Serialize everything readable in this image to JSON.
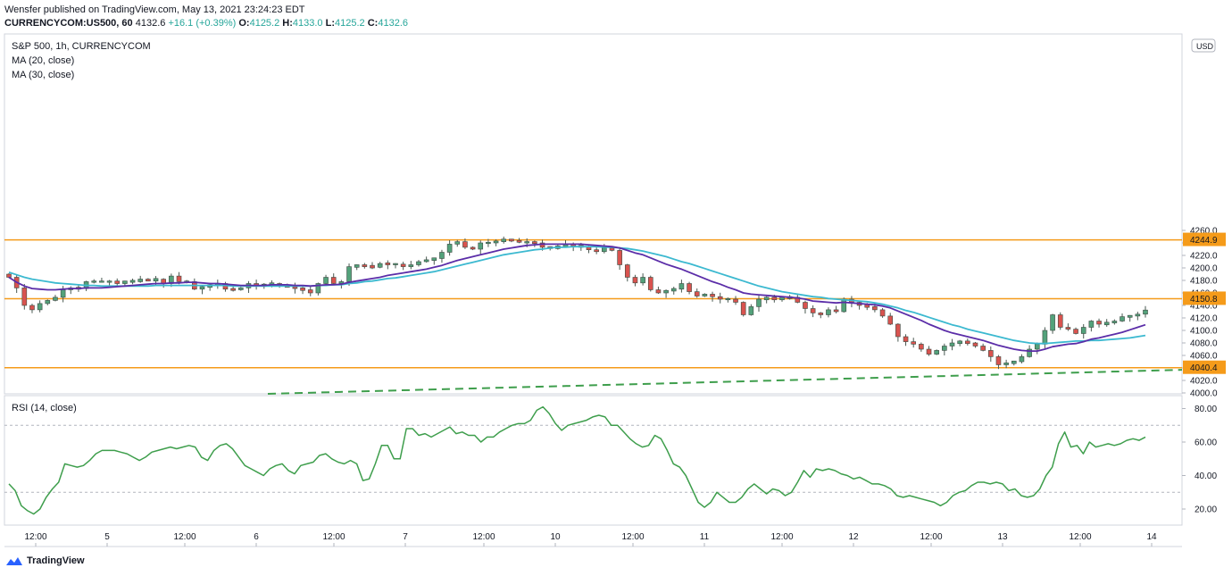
{
  "header": {
    "line1": "Wensfer published on TradingView.com, May 13, 2021 23:24:23 EDT",
    "symbol": "CURRENCYCOM:US500, 60",
    "last": "4132.6",
    "change": "+16.1 (+0.39%)",
    "o_label": "O:",
    "o": "4125.2",
    "h_label": "H:",
    "h": "4133.0",
    "l_label": "L:",
    "l": "4125.2",
    "c_label": "C:",
    "c": "4132.6"
  },
  "legend": {
    "main": "S&P 500, 1h, CURRENCYCOM",
    "ma20": "MA (20, close)",
    "ma30": "MA (30, close)",
    "rsi": "RSI (14, close)"
  },
  "currency": "USD",
  "brand": "TradingView",
  "colors": {
    "up": "#53a27b",
    "down": "#d9534f",
    "ma20": "#5b2da8",
    "ma30": "#3cb9d0",
    "hline": "#f59b1a",
    "trend": "#3e9e4c",
    "rsi": "#3e9e4c"
  },
  "chart_data": [
    {
      "type": "candlestick",
      "title": "S&P 500, 1h, CURRENCYCOM",
      "ylim": [
        4000,
        4270
      ],
      "y_ticks": [
        4000,
        4020,
        4040,
        4060,
        4080,
        4100,
        4120,
        4140,
        4160,
        4180,
        4200,
        4220,
        4240,
        4260
      ],
      "x_ticks": [
        "12:00",
        "5",
        "12:00",
        "6",
        "12:00",
        "7",
        "12:00",
        "10",
        "12:00",
        "11",
        "12:00",
        "12",
        "12:00",
        "13",
        "12:00",
        "14"
      ],
      "price_labels": [
        4244.9,
        4150.8,
        4040.4
      ],
      "horizontal_levels": [
        4244.9,
        4150.8,
        4040.4
      ],
      "trendline": {
        "from": 4000,
        "to": 4037,
        "style": "dashed"
      },
      "close": [
        4185,
        4168,
        4140,
        4133,
        4143,
        4148,
        4153,
        4165,
        4168,
        4167,
        4178,
        4178,
        4178,
        4178,
        4176,
        4178,
        4179,
        4181,
        4180,
        4182,
        4175,
        4187,
        4178,
        4178,
        4166,
        4170,
        4172,
        4175,
        4166,
        4165,
        4168,
        4175,
        4172,
        4173,
        4175,
        4171,
        4170,
        4167,
        4165,
        4160,
        4175,
        4185,
        4175,
        4178,
        4202,
        4204,
        4203,
        4201,
        4207,
        4206,
        4206,
        4202,
        4205,
        4210,
        4213,
        4215,
        4225,
        4238,
        4242,
        4233,
        4230,
        4240,
        4240,
        4243,
        4245,
        4244,
        4241,
        4241,
        4240,
        4233,
        4232,
        4234,
        4238,
        4235,
        4234,
        4229,
        4226,
        4232,
        4228,
        4205,
        4185,
        4176,
        4185,
        4165,
        4160,
        4164,
        4166,
        4175,
        4162,
        4155,
        4158,
        4154,
        4150,
        4150,
        4145,
        4125,
        4138,
        4150,
        4152,
        4150,
        4152,
        4153,
        4145,
        4135,
        4128,
        4125,
        4133,
        4130,
        4150,
        4145,
        4140,
        4138,
        4133,
        4123,
        4110,
        4090,
        4082,
        4078,
        4070,
        4062,
        4068,
        4075,
        4080,
        4082,
        4080,
        4075,
        4068,
        4058,
        4045,
        4048,
        4050,
        4058,
        4070,
        4078,
        4100,
        4125,
        4105,
        4102,
        4095,
        4105,
        4115,
        4110,
        4112,
        4115,
        4122,
        4123,
        4126,
        4132.6
      ],
      "series": [
        {
          "name": "MA (20, close)",
          "values": [
            4185,
            4177,
            4171,
            4167,
            4166,
            4165,
            4165,
            4166,
            4167,
            4167,
            4168,
            4168,
            4168,
            4169,
            4170,
            4171,
            4172,
            4173,
            4174,
            4175,
            4175,
            4176,
            4176,
            4177,
            4177,
            4176,
            4175,
            4175,
            4174,
            4173,
            4172,
            4172,
            4172,
            4172,
            4173,
            4173,
            4173,
            4172,
            4172,
            4171,
            4172,
            4173,
            4173,
            4174,
            4177,
            4179,
            4181,
            4183,
            4185,
            4188,
            4190,
            4192,
            4194,
            4196,
            4198,
            4201,
            4204,
            4208,
            4212,
            4215,
            4218,
            4221,
            4224,
            4227,
            4230,
            4232,
            4234,
            4236,
            4237,
            4238,
            4238,
            4238,
            4238,
            4238,
            4238,
            4237,
            4236,
            4235,
            4234,
            4232,
            4228,
            4224,
            4221,
            4216,
            4211,
            4206,
            4202,
            4198,
            4193,
            4188,
            4183,
            4178,
            4174,
            4169,
            4165,
            4160,
            4158,
            4157,
            4156,
            4155,
            4154,
            4153,
            4152,
            4150,
            4147,
            4146,
            4145,
            4144,
            4145,
            4144,
            4143,
            4142,
            4141,
            4139,
            4136,
            4131,
            4126,
            4121,
            4116,
            4110,
            4105,
            4100,
            4096,
            4093,
            4090,
            4087,
            4084,
            4080,
            4076,
            4073,
            4070,
            4068,
            4067,
            4067,
            4070,
            4074,
            4076,
            4078,
            4079,
            4082,
            4086,
            4088,
            4091,
            4094,
            4097,
            4101,
            4105,
            4109
          ]
        },
        {
          "name": "MA (30, close)",
          "values": [
            4193,
            4189,
            4185,
            4182,
            4180,
            4178,
            4176,
            4175,
            4174,
            4173,
            4172,
            4172,
            4171,
            4171,
            4171,
            4171,
            4171,
            4171,
            4171,
            4172,
            4172,
            4172,
            4172,
            4172,
            4172,
            4172,
            4172,
            4172,
            4172,
            4171,
            4171,
            4171,
            4171,
            4171,
            4171,
            4171,
            4171,
            4171,
            4171,
            4171,
            4172,
            4172,
            4173,
            4173,
            4175,
            4176,
            4178,
            4179,
            4181,
            4183,
            4184,
            4186,
            4188,
            4190,
            4192,
            4194,
            4197,
            4200,
            4203,
            4206,
            4209,
            4212,
            4215,
            4218,
            4221,
            4223,
            4225,
            4227,
            4229,
            4230,
            4232,
            4233,
            4233,
            4234,
            4234,
            4234,
            4234,
            4233,
            4233,
            4232,
            4231,
            4229,
            4227,
            4224,
            4221,
            4218,
            4214,
            4210,
            4207,
            4203,
            4199,
            4195,
            4191,
            4187,
            4183,
            4179,
            4175,
            4171,
            4168,
            4165,
            4162,
            4160,
            4158,
            4156,
            4154,
            4153,
            4151,
            4150,
            4149,
            4148,
            4147,
            4146,
            4144,
            4142,
            4139,
            4136,
            4132,
            4129,
            4125,
            4121,
            4117,
            4113,
            4109,
            4106,
            4102,
            4099,
            4096,
            4093,
            4090,
            4087,
            4084,
            4082,
            4080,
            4079,
            4079,
            4080,
            4081,
            4082,
            4083,
            4083,
            4084,
            4084,
            4085,
            4086,
            4087,
            4088,
            4090,
            4092
          ]
        }
      ]
    },
    {
      "type": "line",
      "title": "RSI (14, close)",
      "ylim": [
        10,
        90
      ],
      "y_ticks": [
        20,
        40,
        60,
        80
      ],
      "bands": [
        30,
        70
      ],
      "series": [
        {
          "name": "RSI (14, close)",
          "values": [
            35,
            31,
            22,
            19,
            17,
            20,
            27,
            32,
            36,
            47,
            46,
            45,
            46,
            49,
            53,
            55,
            55,
            55,
            54,
            53,
            51,
            49,
            51,
            54,
            55,
            56,
            57,
            56,
            57,
            58,
            57,
            51,
            49,
            55,
            58,
            59,
            56,
            51,
            46,
            44,
            42,
            40,
            44,
            46,
            47,
            43,
            41,
            46,
            47,
            48,
            52,
            53,
            50,
            48,
            47,
            49,
            47,
            37,
            38,
            47,
            58,
            58,
            50,
            50,
            68,
            68,
            64,
            65,
            63,
            65,
            67,
            69,
            65,
            66,
            64,
            64,
            60,
            63,
            63,
            66,
            68,
            70,
            71,
            71,
            73,
            79,
            81,
            77,
            71,
            67,
            70,
            71,
            72,
            73,
            75,
            76,
            75,
            70,
            70,
            66,
            62,
            59,
            57,
            58,
            64,
            62,
            55,
            47,
            45,
            40,
            32,
            24,
            21,
            24,
            30,
            27,
            24,
            24,
            27,
            32,
            35,
            32,
            29,
            32,
            31,
            28,
            30,
            36,
            43,
            39,
            44,
            43,
            44,
            43,
            41,
            40,
            38,
            39,
            37,
            35,
            35,
            34,
            32,
            28,
            27,
            28,
            27,
            26,
            25,
            24,
            22,
            24,
            28,
            30,
            31,
            34,
            36,
            36,
            35,
            36,
            35,
            31,
            32,
            28,
            27,
            28,
            32,
            40,
            45,
            59,
            66,
            57,
            58,
            53,
            60,
            57,
            58,
            59,
            58,
            59,
            61,
            62,
            61,
            63
          ]
        }
      ]
    }
  ]
}
